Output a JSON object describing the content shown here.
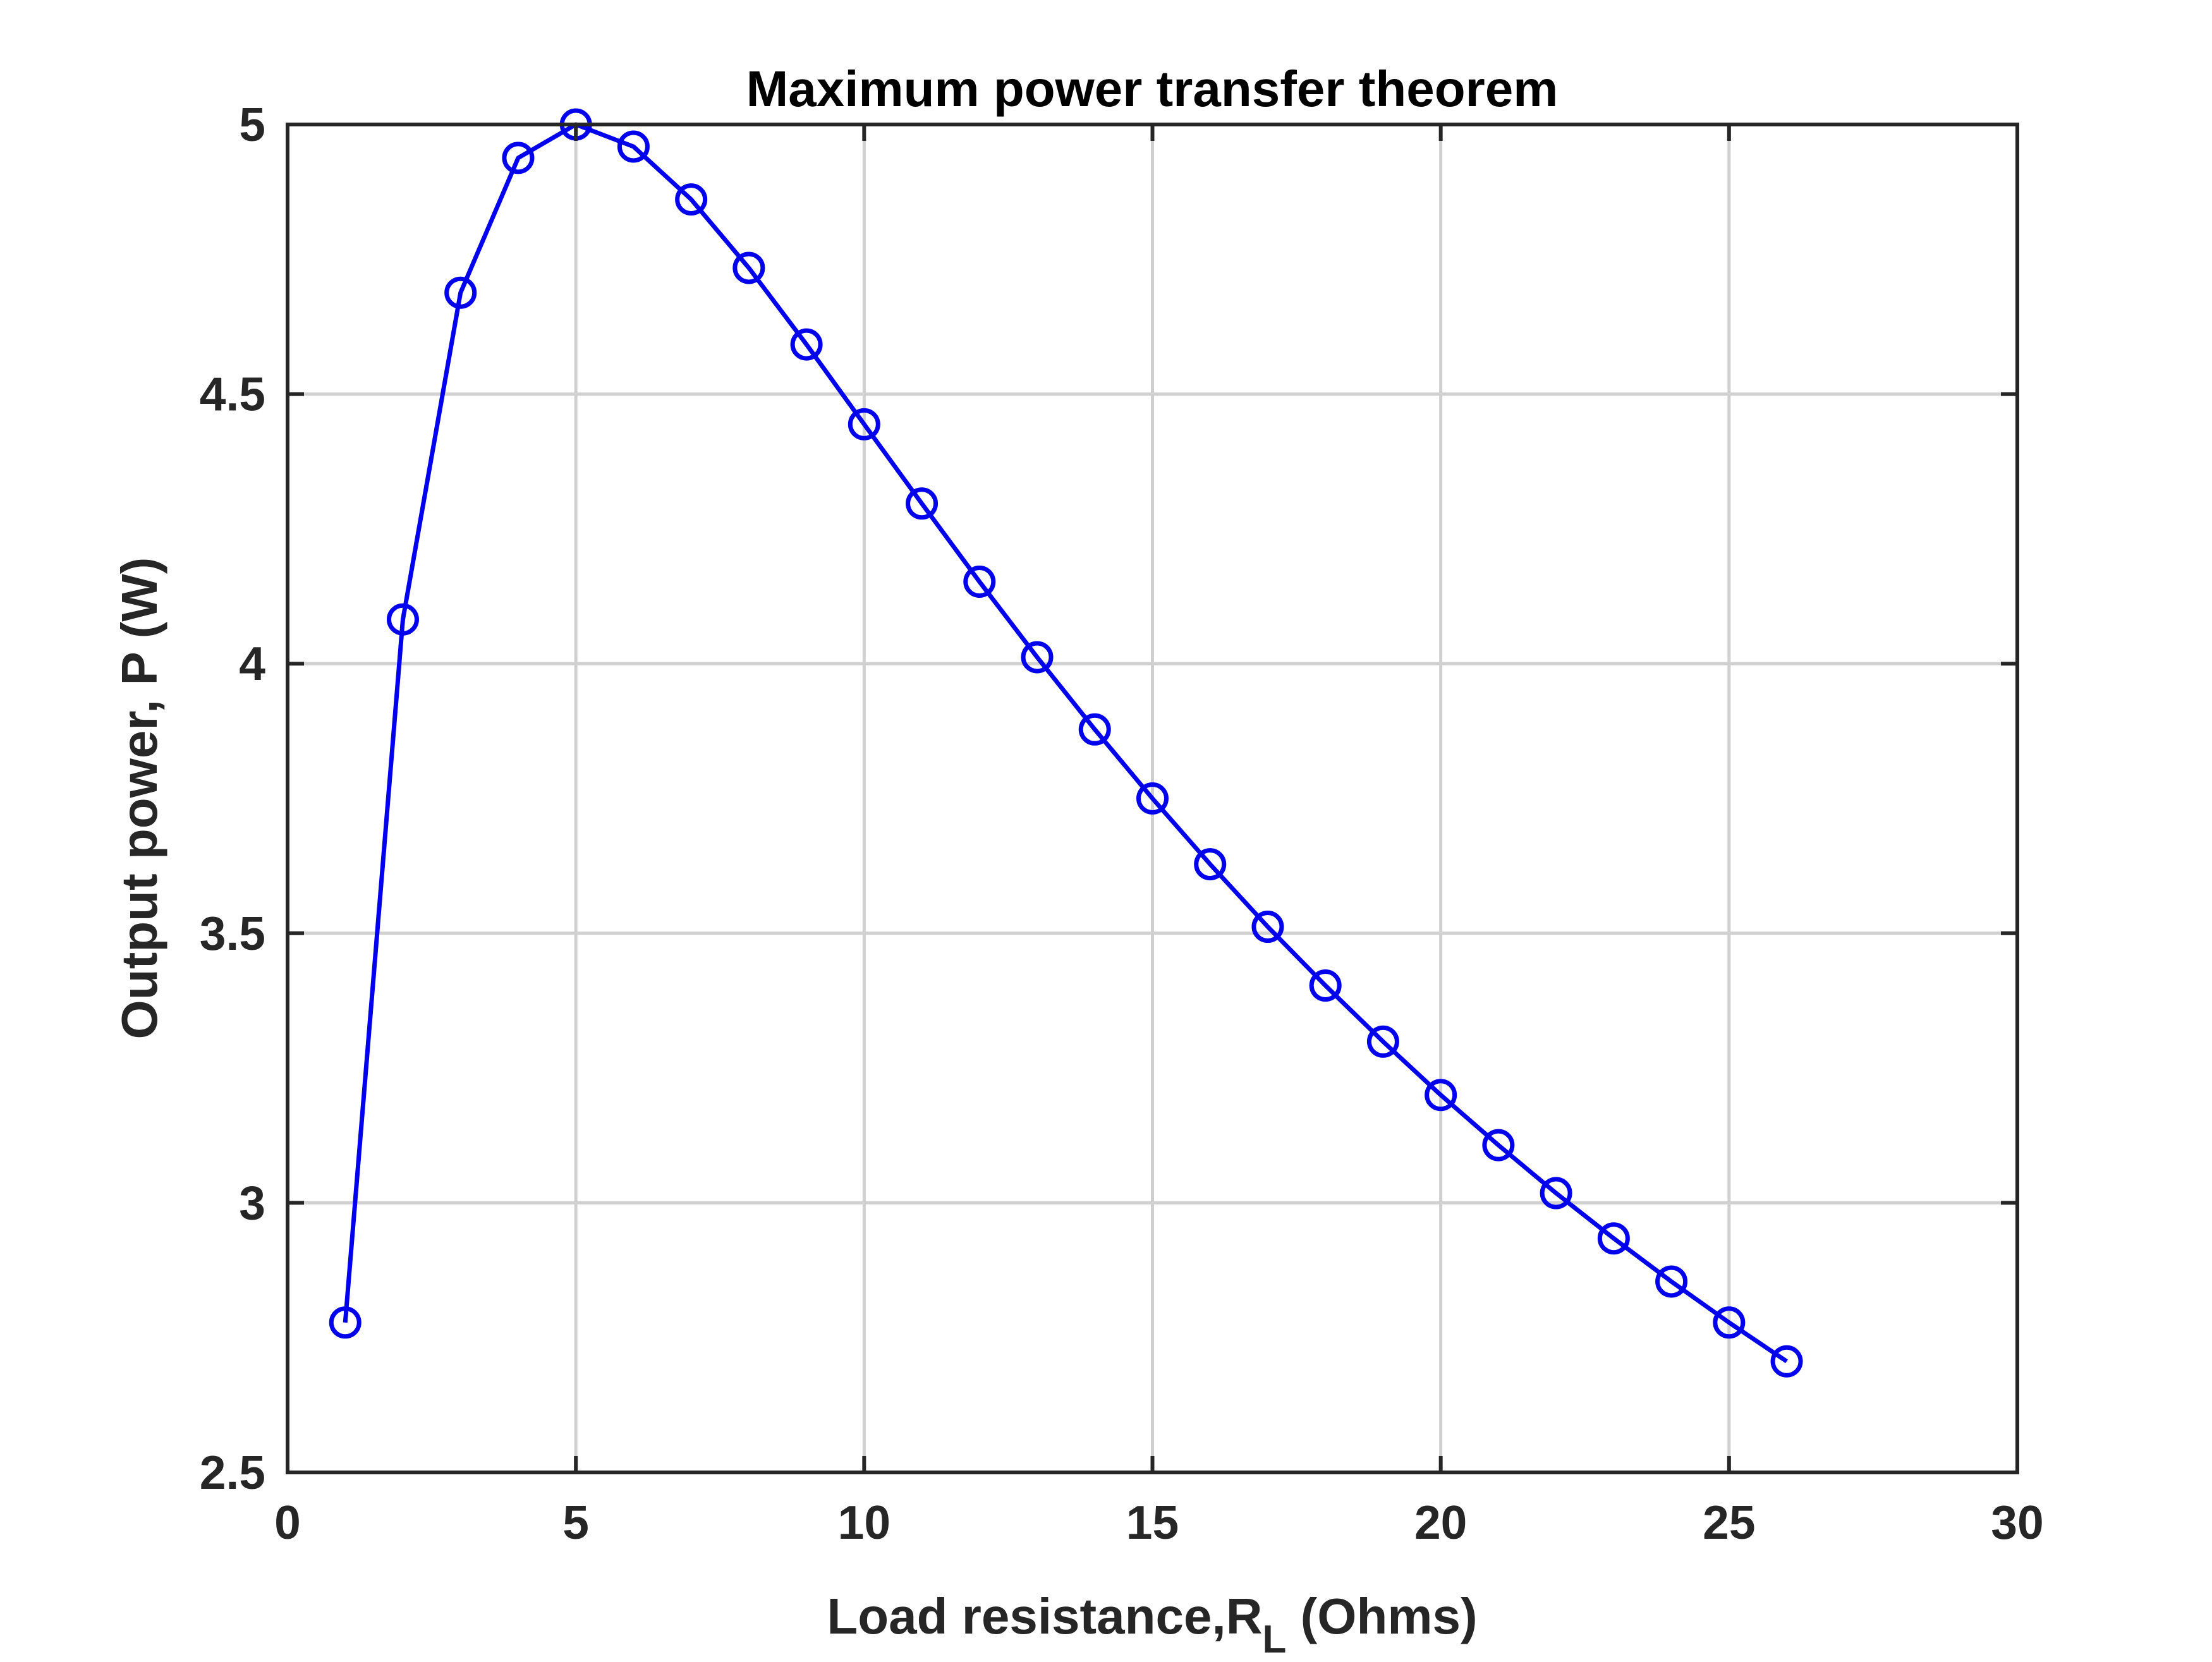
{
  "chart_data": {
    "type": "line",
    "title": "Maximum power transfer theorem",
    "xlabel": {
      "main": "Load resistance,R",
      "subscript": "L",
      "suffix": " (Ohms)"
    },
    "ylabel": "Output power, P (W)",
    "xlim": [
      0,
      30
    ],
    "ylim": [
      2.5,
      5
    ],
    "xticks": [
      0,
      5,
      10,
      15,
      20,
      25,
      30
    ],
    "xtick_labels": [
      "0",
      "5",
      "10",
      "15",
      "20",
      "25",
      "30"
    ],
    "yticks": [
      2.5,
      3,
      3.5,
      4,
      4.5,
      5
    ],
    "ytick_labels": [
      "2.5",
      "3",
      "3.5",
      "4",
      "4.5",
      "5"
    ],
    "grid": true,
    "legend": "none",
    "marker": "circle-open",
    "series": [
      {
        "color": "#0000ee",
        "x": [
          1,
          2,
          3,
          4,
          5,
          6,
          7,
          8,
          9,
          10,
          11,
          12,
          13,
          14,
          15,
          16,
          17,
          18,
          19,
          20,
          21,
          22,
          23,
          24,
          25,
          26
        ],
        "y": [
          2.778,
          4.082,
          4.688,
          4.938,
          5.0,
          4.959,
          4.861,
          4.734,
          4.592,
          4.444,
          4.297,
          4.152,
          4.012,
          3.878,
          3.75,
          3.628,
          3.512,
          3.403,
          3.299,
          3.2,
          3.107,
          3.018,
          2.934,
          2.854,
          2.778,
          2.706
        ]
      }
    ],
    "colors": {
      "axis": "#262626",
      "grid": "#d0d0d0",
      "background": "#ffffff"
    }
  }
}
